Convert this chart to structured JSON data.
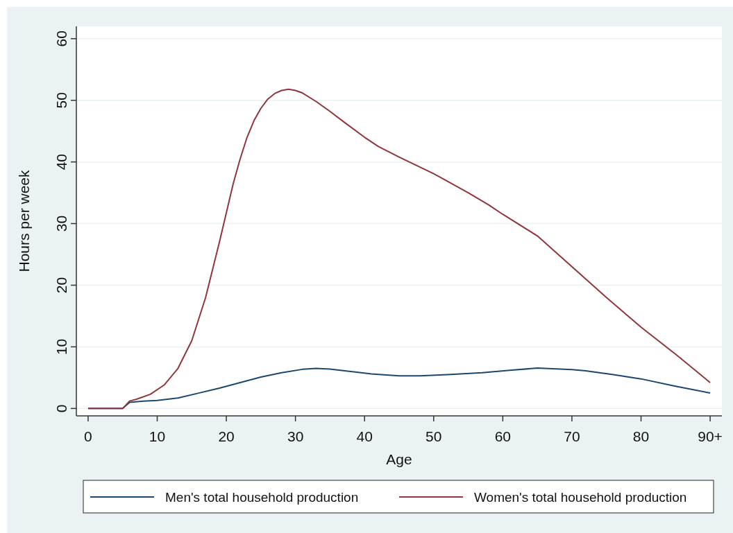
{
  "chart_data": {
    "type": "line",
    "xlabel": "Age",
    "ylabel": "Hours per week",
    "xlim": [
      -1.7,
      91.7
    ],
    "xticks": [
      0,
      10,
      20,
      30,
      40,
      50,
      60,
      70,
      80,
      {
        "value": 90,
        "label": "90+"
      }
    ],
    "ylim": [
      -1.2,
      62
    ],
    "yticks": [
      0,
      10,
      20,
      30,
      40,
      50,
      60
    ],
    "grid": "y",
    "legend": "bottom",
    "series": [
      {
        "name": "Men's total household production",
        "color": "#1a476f",
        "x": [
          0,
          5,
          6,
          8,
          10,
          13,
          16,
          19,
          22,
          25,
          28,
          31,
          33,
          35,
          38,
          41,
          45,
          48,
          52,
          57,
          61,
          65,
          70,
          72,
          76,
          80,
          85,
          90
        ],
        "values": [
          0,
          0,
          1.0,
          1.2,
          1.3,
          1.7,
          2.5,
          3.3,
          4.2,
          5.1,
          5.8,
          6.35,
          6.5,
          6.4,
          6.0,
          5.6,
          5.3,
          5.3,
          5.5,
          5.8,
          6.2,
          6.55,
          6.3,
          6.1,
          5.5,
          4.8,
          3.6,
          2.5
        ]
      },
      {
        "name": "Women's total household production",
        "color": "#90353b",
        "x": [
          0,
          5,
          6,
          7,
          9,
          11,
          13,
          15,
          17,
          19,
          21,
          22,
          23,
          24,
          25,
          26,
          27,
          28,
          29,
          30,
          31,
          33,
          35,
          37,
          40,
          42,
          45,
          50,
          55,
          58,
          60,
          65,
          70,
          75,
          80,
          85,
          90
        ],
        "values": [
          0,
          0,
          1.2,
          1.5,
          2.3,
          3.8,
          6.5,
          11,
          18,
          27,
          36.5,
          40.5,
          44,
          46.7,
          48.7,
          50.2,
          51.1,
          51.6,
          51.8,
          51.6,
          51.2,
          49.8,
          48.2,
          46.5,
          44,
          42.5,
          40.8,
          38.1,
          35,
          33,
          31.5,
          28,
          23,
          18,
          13.2,
          8.8,
          4.2
        ]
      }
    ]
  }
}
